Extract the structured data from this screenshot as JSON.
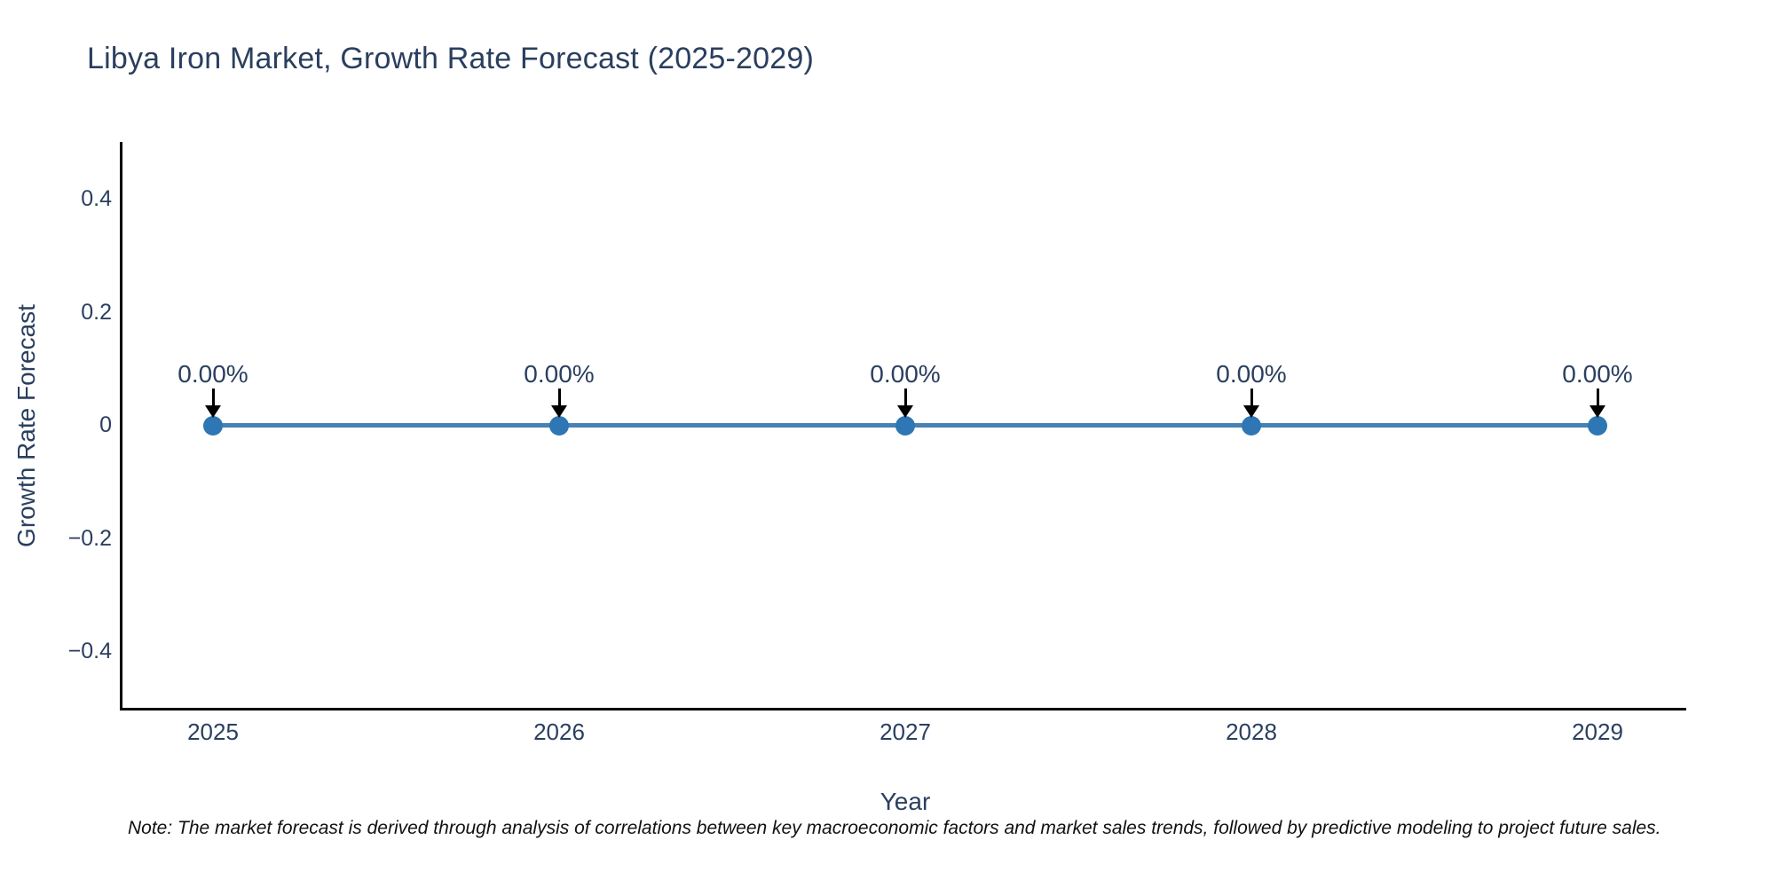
{
  "title": "Libya Iron Market, Growth Rate Forecast (2025-2029)",
  "note": "Note: The market forecast is derived through analysis of correlations between key macroeconomic factors and market sales trends, followed by predictive modeling to project future sales.",
  "chart_data": {
    "type": "line",
    "title": "Libya Iron Market, Growth Rate Forecast (2025-2029)",
    "xlabel": "Year",
    "ylabel": "Growth Rate Forecast",
    "x": [
      2025,
      2026,
      2027,
      2028,
      2029
    ],
    "values": [
      0,
      0,
      0,
      0,
      0
    ],
    "point_labels": [
      "0.00%",
      "0.00%",
      "0.00%",
      "0.00%",
      "0.00%"
    ],
    "xtick_labels": [
      "2025",
      "2026",
      "2027",
      "2028",
      "2029"
    ],
    "yticks": [
      0.4,
      0.2,
      0,
      -0.2,
      -0.4
    ],
    "ytick_labels": [
      "0.4",
      "0.2",
      "0",
      "−0.2",
      "−0.4"
    ],
    "ylim": [
      -0.5,
      0.5
    ],
    "grid": false,
    "legend_position": "none",
    "line_color": "#4682b4",
    "marker_color": "#2e76b4",
    "axis_color": "#000000",
    "text_color": "#2a3f5f",
    "annotation_arrow_color": "#000000",
    "background_color": "#ffffff"
  }
}
